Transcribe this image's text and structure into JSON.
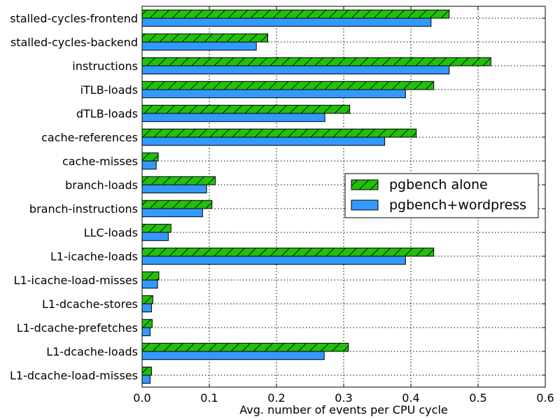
{
  "chart_data": {
    "type": "bar",
    "orientation": "horizontal",
    "categories": [
      "stalled-cycles-frontend",
      "stalled-cycles-backend",
      "instructions",
      "iTLB-loads",
      "dTLB-loads",
      "cache-references",
      "cache-misses",
      "branch-loads",
      "branch-instructions",
      "LLC-loads",
      "L1-icache-loads",
      "L1-icache-load-misses",
      "L1-dcache-stores",
      "L1-dcache-prefetches",
      "L1-dcache-loads",
      "L1-dcache-load-misses"
    ],
    "series": [
      {
        "name": "pgbench alone",
        "color": "#22c00b",
        "hatch": "diagonal",
        "values": [
          0.457,
          0.187,
          0.519,
          0.434,
          0.309,
          0.408,
          0.024,
          0.109,
          0.104,
          0.043,
          0.434,
          0.025,
          0.016,
          0.015,
          0.307,
          0.014
        ]
      },
      {
        "name": "pgbench+wordpress",
        "color": "#3399ff",
        "hatch": "none",
        "values": [
          0.43,
          0.17,
          0.457,
          0.392,
          0.272,
          0.361,
          0.021,
          0.096,
          0.09,
          0.039,
          0.392,
          0.023,
          0.014,
          0.012,
          0.271,
          0.012
        ]
      }
    ],
    "xlabel": "Avg. number of events per CPU cycle",
    "ylabel": "",
    "xlim": [
      0.0,
      0.6
    ],
    "xticks": [
      "0.0",
      "0.1",
      "0.2",
      "0.3",
      "0.4",
      "0.5",
      "0.6"
    ],
    "grid": true,
    "legend_position": "center-right"
  }
}
